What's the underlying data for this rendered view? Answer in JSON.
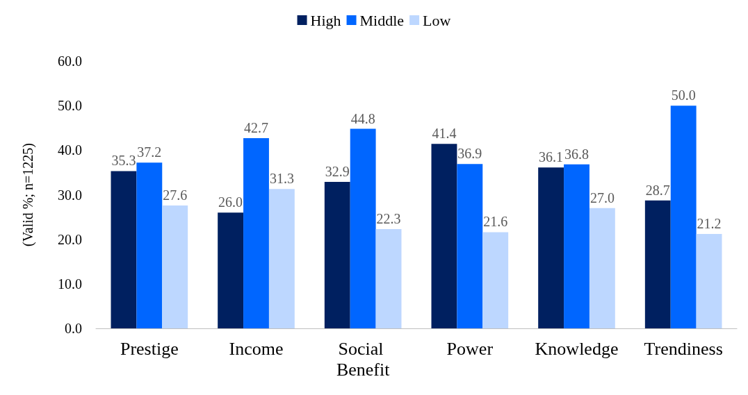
{
  "chart_data": {
    "type": "bar",
    "ylabel": "(Valid %; n=1225)",
    "categories": [
      "Prestige",
      "Income",
      "Social Benefit",
      "Power",
      "Knowledge",
      "Trendiness"
    ],
    "series": [
      {
        "name": "High",
        "color": "#002060",
        "values": [
          35.3,
          26.0,
          32.9,
          41.4,
          36.1,
          28.7
        ],
        "value_labels": [
          "35.3",
          "26.0",
          "32.9",
          "41.4",
          "36.1",
          "28.7"
        ]
      },
      {
        "name": "Middle",
        "color": "#0066ff",
        "values": [
          37.2,
          42.7,
          44.8,
          36.9,
          36.8,
          50.0
        ],
        "value_labels": [
          "37.2",
          "42.7",
          "44.8",
          "36.9",
          "36.8",
          "50.0"
        ]
      },
      {
        "name": "Low",
        "color": "#bdd7ff",
        "values": [
          27.6,
          31.3,
          22.3,
          21.6,
          27.0,
          21.2
        ],
        "value_labels": [
          "27.6",
          "31.3",
          "22.3",
          "21.6",
          "27.0",
          "21.2"
        ]
      }
    ],
    "ylim": [
      0,
      60
    ],
    "yticks": [
      {
        "value": 0,
        "label": "0.0"
      },
      {
        "value": 10,
        "label": "10.0"
      },
      {
        "value": 20,
        "label": "20.0"
      },
      {
        "value": 30,
        "label": "30.0"
      },
      {
        "value": 40,
        "label": "40.0"
      },
      {
        "value": 50,
        "label": "50.0"
      },
      {
        "value": 60,
        "label": "60.0"
      }
    ],
    "grid": false,
    "legend": "top"
  }
}
